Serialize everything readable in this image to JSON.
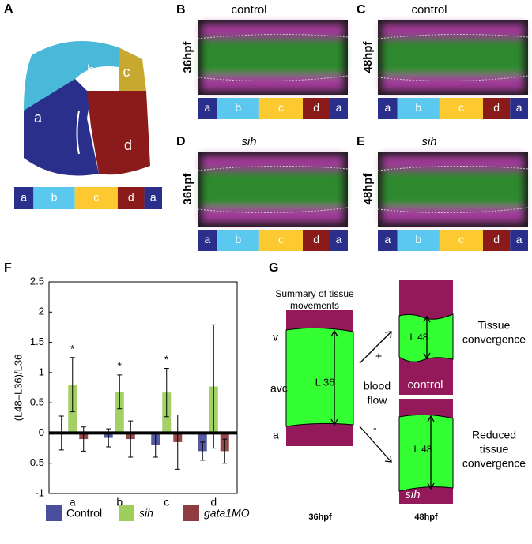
{
  "panel_a": {
    "label": "A",
    "regions": [
      "a",
      "b",
      "c",
      "d"
    ],
    "strip": [
      "a",
      "b",
      "c",
      "d",
      "a"
    ]
  },
  "images": [
    {
      "label": "B",
      "title": "control",
      "stage": "36hpf",
      "strip": [
        "a",
        "b",
        "c",
        "d",
        "a"
      ]
    },
    {
      "label": "C",
      "title": "control",
      "stage": "48hpf",
      "strip": [
        "a",
        "b",
        "c",
        "d",
        "a"
      ]
    },
    {
      "label": "D",
      "title": "sih",
      "stage": "36hpf",
      "strip": [
        "a",
        "b",
        "c",
        "d",
        "a"
      ]
    },
    {
      "label": "E",
      "title": "sih",
      "stage": "48hpf",
      "strip": [
        "a",
        "b",
        "c",
        "d",
        "a"
      ]
    }
  ],
  "chart_data": {
    "type": "bar",
    "panel_label": "F",
    "y_label": "(L48–L36)/L36",
    "categories": [
      "a",
      "b",
      "c",
      "d"
    ],
    "series": [
      {
        "name": "Control",
        "color": "#2b2f8c",
        "values": [
          0,
          -0.08,
          -0.2,
          -0.3
        ],
        "errors": [
          0.28,
          0.15,
          0.2,
          0.15
        ]
      },
      {
        "name": "sih",
        "color": "#8dc63f",
        "values": [
          0.8,
          0.68,
          0.67,
          0.77
        ],
        "errors": [
          0.45,
          0.28,
          0.4,
          1.02
        ],
        "significance": [
          "*",
          "*",
          "*",
          null
        ]
      },
      {
        "name": "gata1MO",
        "color": "#7b1a1f",
        "values": [
          -0.1,
          -0.1,
          -0.15,
          -0.3
        ],
        "errors": [
          0.2,
          0.3,
          0.45,
          0.2
        ]
      }
    ],
    "ylim": [
      -1,
      2.5
    ],
    "yticks": [
      -1,
      -0.5,
      0,
      0.5,
      1,
      1.5,
      2,
      2.5
    ]
  },
  "panel_g": {
    "label": "G",
    "summary": [
      "Summary of tissue",
      "movements"
    ],
    "v": "v",
    "avc": "avc",
    "a": "a",
    "l36": "L 36",
    "plus": "+",
    "minus": "-",
    "blood_flow": [
      "blood",
      "flow"
    ],
    "top_length": "L 48",
    "top_caption": [
      "Tissue",
      "convergence"
    ],
    "top_condition": "control",
    "bottom_length": "L 48",
    "bottom_caption": [
      "Reduced",
      "tissue",
      "convergence"
    ],
    "bottom_condition": "sih",
    "stage_left": "36hpf",
    "stage_right": "48hpf"
  }
}
